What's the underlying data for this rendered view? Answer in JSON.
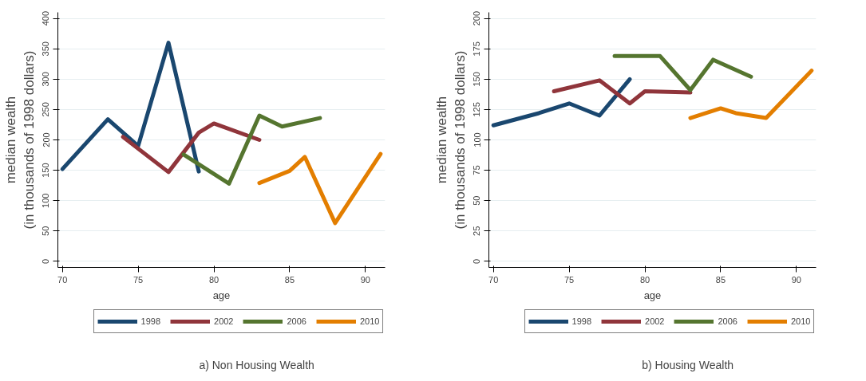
{
  "chart_data": [
    {
      "type": "line",
      "title": "a) Non Housing Wealth",
      "xlabel": "age",
      "ylabel": "median wealth\n(in thousands of 1998 dollars)",
      "xlim": [
        69.7,
        91.3
      ],
      "xticks": [
        70,
        75,
        80,
        85,
        90
      ],
      "ylim": [
        -10,
        410
      ],
      "yticks": [
        0,
        50,
        100,
        150,
        200,
        250,
        300,
        350,
        400
      ],
      "grid": "y",
      "legend": "bottom",
      "series": [
        {
          "name": "1998",
          "color": "#1a476f",
          "x": [
            70,
            73,
            75,
            77,
            79
          ],
          "values": [
            152,
            234,
            190,
            360,
            148
          ]
        },
        {
          "name": "2002",
          "color": "#90353b",
          "x": [
            74,
            77,
            79,
            80,
            83
          ],
          "values": [
            205,
            147,
            212,
            227,
            200
          ]
        },
        {
          "name": "2006",
          "color": "#55752f",
          "x": [
            78,
            81,
            83,
            84.5,
            87
          ],
          "values": [
            176,
            128,
            240,
            222,
            236
          ]
        },
        {
          "name": "2010",
          "color": "#e37e00",
          "x": [
            83,
            85,
            86,
            88,
            91
          ],
          "values": [
            129,
            149,
            172,
            63,
            177
          ]
        }
      ]
    },
    {
      "type": "line",
      "title": "b) Housing Wealth",
      "xlabel": "age",
      "ylabel": "median wealth\n(in thousands of 1998 dollars)",
      "xlim": [
        69.7,
        91.3
      ],
      "xticks": [
        70,
        75,
        80,
        85,
        90
      ],
      "ylim": [
        -5,
        205
      ],
      "yticks": [
        0,
        25,
        50,
        75,
        100,
        125,
        150,
        175,
        200
      ],
      "grid": "y",
      "legend": "bottom",
      "series": [
        {
          "name": "1998",
          "color": "#1a476f",
          "x": [
            70,
            73,
            75,
            77,
            79
          ],
          "values": [
            112,
            122,
            130,
            120,
            150
          ]
        },
        {
          "name": "2002",
          "color": "#90353b",
          "x": [
            74,
            77,
            79,
            80,
            83
          ],
          "values": [
            140,
            149,
            130,
            140,
            139
          ]
        },
        {
          "name": "2006",
          "color": "#55752f",
          "x": [
            78,
            81,
            83,
            84.5,
            87
          ],
          "values": [
            169,
            169,
            141,
            166,
            152
          ]
        },
        {
          "name": "2010",
          "color": "#e37e00",
          "x": [
            83,
            85,
            86,
            88,
            91
          ],
          "values": [
            118,
            126,
            122,
            118,
            157
          ]
        }
      ]
    }
  ]
}
